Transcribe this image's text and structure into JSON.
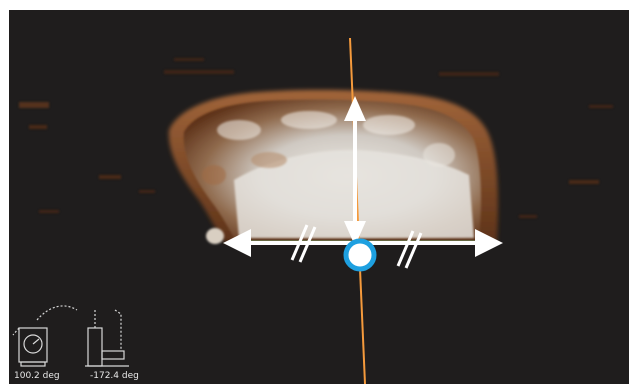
{
  "viewer": {
    "background_color": "#1f1d1d",
    "scan_tissue_colors": [
      "#e9e5df",
      "#9b5e34",
      "#6e3b1d"
    ],
    "axis_line_color": "#f59a3c",
    "control_arrow_color": "#ffffff",
    "baseline_color": "#7fa36a",
    "pivot_ring_color": "#1ea0e0"
  },
  "orientation_widget": {
    "angle_1": "100.2 deg",
    "angle_2": "-172.4 deg",
    "icons": [
      "scanner-front-view-icon",
      "scanner-side-view-icon"
    ]
  },
  "controls": {
    "vertical_arrow": "double-headed-vertical-arrow",
    "horizontal_arrow": "double-headed-horizontal-arrow",
    "parallel_marks": [
      "parallel-mark-left",
      "parallel-mark-right"
    ],
    "pivot": "rotation-pivot-ring"
  }
}
